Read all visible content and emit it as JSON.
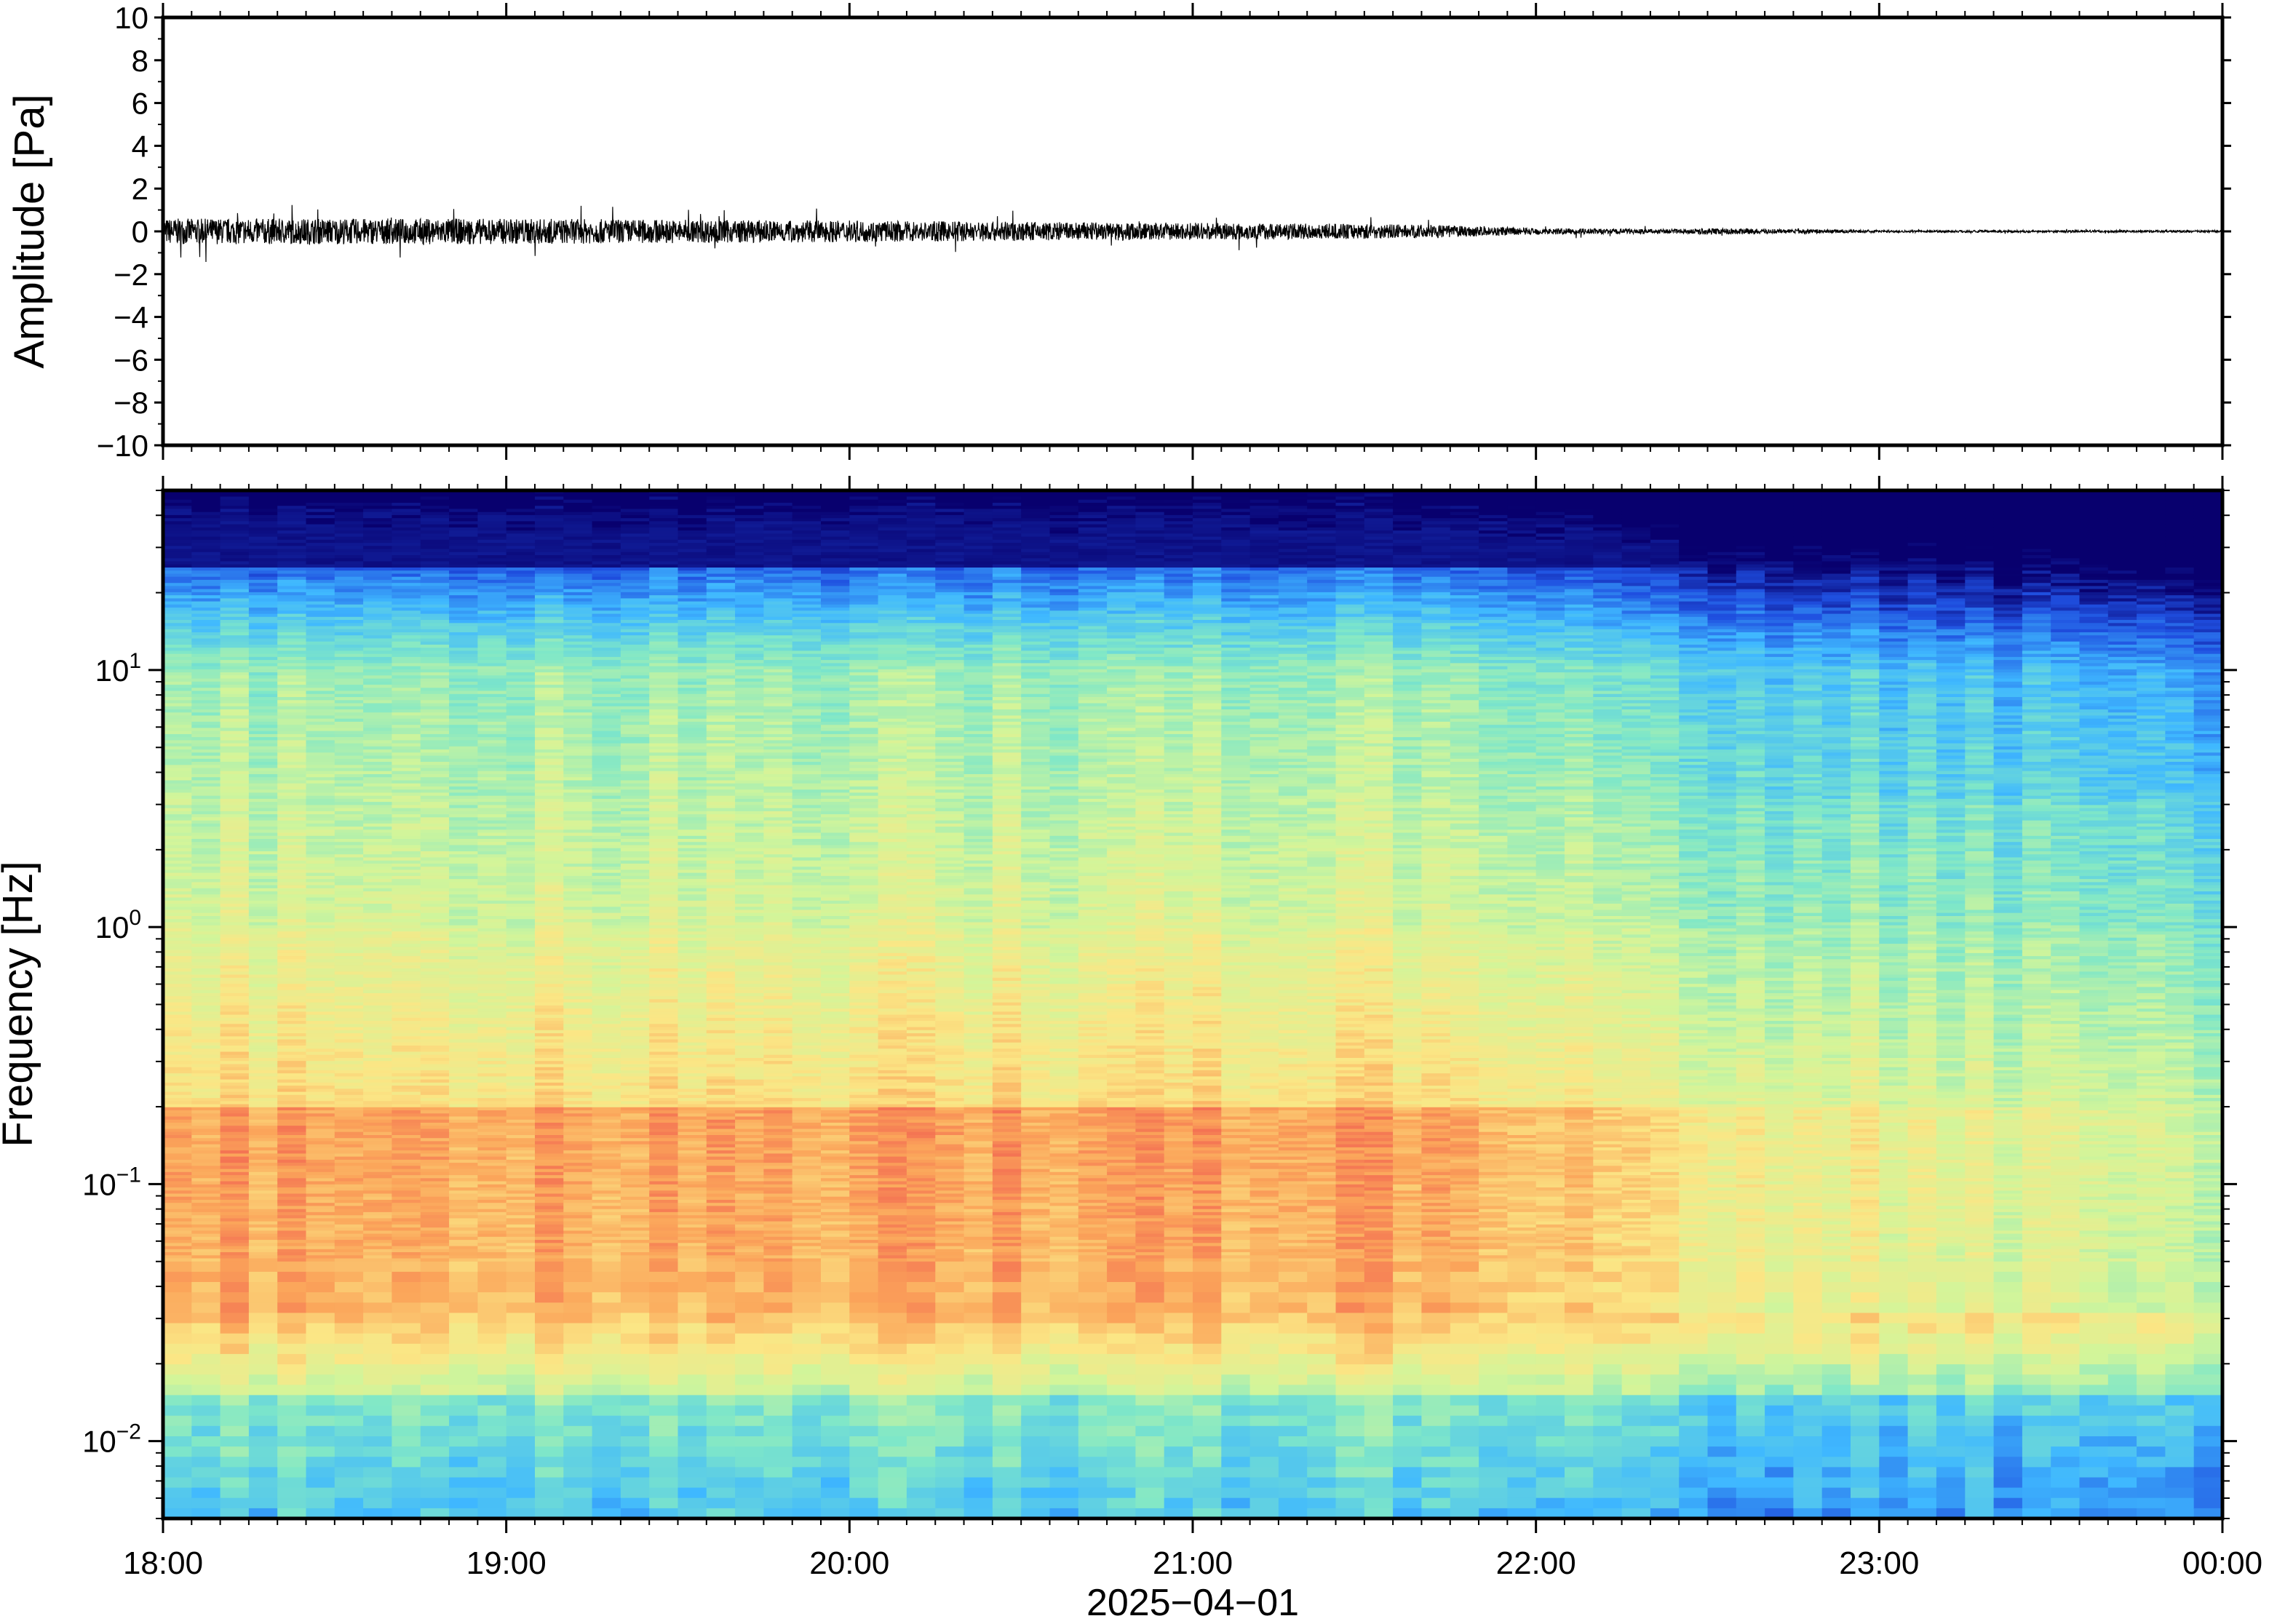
{
  "chart_data": [
    {
      "type": "line",
      "ylabel": "Amplitude [Pa]",
      "ylim": [
        -10,
        10
      ],
      "y_ticks": [
        10,
        8,
        6,
        4,
        2,
        0,
        -2,
        -4,
        -6,
        -8,
        -10
      ],
      "y_tick_labels": [
        "10",
        "8",
        "6",
        "4",
        "2",
        "0",
        "−2",
        "−4",
        "−6",
        "−8",
        "−10"
      ],
      "xlim": [
        "2025-04-01T18:00",
        "2025-04-02T00:00"
      ],
      "series_color": "#000000",
      "envelope": {
        "note_x_unit": "hours after 18:00",
        "x_hours": [
          0.0,
          0.5,
          1.0,
          1.5,
          2.0,
          2.5,
          3.0,
          3.5,
          3.7,
          4.0,
          4.4,
          4.5,
          5.0,
          5.5,
          6.0
        ],
        "amplitude": [
          0.6,
          0.6,
          0.6,
          0.55,
          0.5,
          0.45,
          0.4,
          0.35,
          0.3,
          0.15,
          0.1,
          0.15,
          0.06,
          0.05,
          0.05
        ]
      }
    },
    {
      "type": "heatmap",
      "ylabel": "Frequency [Hz]",
      "xlabel": "2025−04−01",
      "y_scale": "log",
      "ylim": [
        0.005,
        50
      ],
      "y_ticks": [
        0.01,
        0.1,
        1,
        10
      ],
      "y_tick_labels": [
        {
          "base": "10",
          "exp": "−2"
        },
        {
          "base": "10",
          "exp": "−1"
        },
        {
          "base": "10",
          "exp": "0"
        },
        {
          "base": "10",
          "exp": "1"
        }
      ],
      "x_tick_labels": [
        "18:00",
        "19:00",
        "20:00",
        "21:00",
        "22:00",
        "23:00",
        "00:00"
      ],
      "colormap": [
        "#08006e",
        "#1f4fe0",
        "#3fb8ff",
        "#7fe7c8",
        "#d2f59a",
        "#fbe685",
        "#fba55a",
        "#f0554f"
      ],
      "regime_change_hour": 4.7
    }
  ]
}
